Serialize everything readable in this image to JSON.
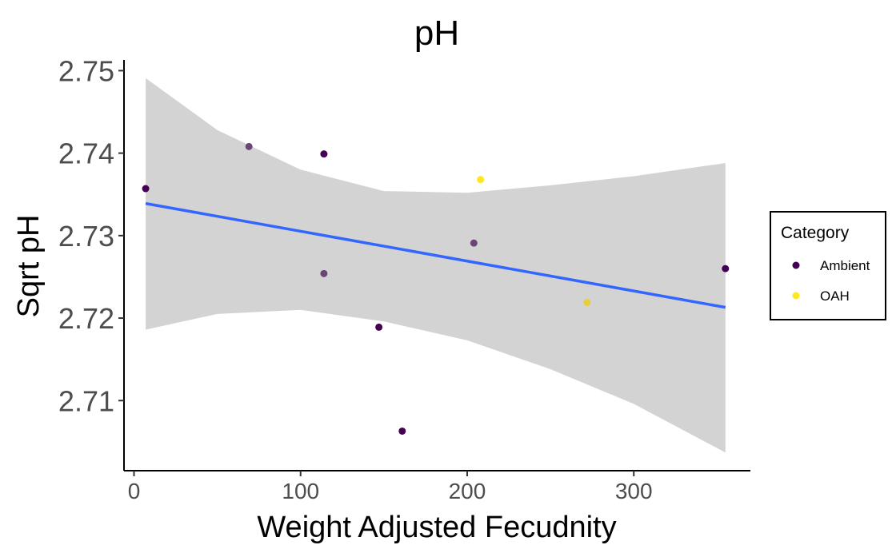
{
  "chart_data": {
    "type": "scatter",
    "title": "pH",
    "xlabel": "Weight Adjusted Fecudnity",
    "ylabel": "Sqrt pH",
    "xlim": [
      -6,
      370
    ],
    "ylim": [
      2.7015,
      2.7513
    ],
    "x_ticks": [
      0,
      100,
      200,
      300
    ],
    "y_ticks": [
      2.71,
      2.72,
      2.73,
      2.74,
      2.75
    ],
    "x_tick_labels": [
      "0",
      "100",
      "200",
      "300"
    ],
    "y_tick_labels": [
      "2.71",
      "2.72",
      "2.73",
      "2.74",
      "2.75"
    ],
    "grid": false,
    "legend": {
      "title": "Category",
      "position": "right",
      "entries": [
        {
          "label": "Ambient",
          "color": "#440154"
        },
        {
          "label": "OAH",
          "color": "#fde725"
        }
      ]
    },
    "points": [
      {
        "x": 7,
        "y": 2.7357,
        "color": "#440154"
      },
      {
        "x": 69,
        "y": 2.7408,
        "color": "#6b4573"
      },
      {
        "x": 114,
        "y": 2.7399,
        "color": "#440154"
      },
      {
        "x": 114,
        "y": 2.7254,
        "color": "#6b4573"
      },
      {
        "x": 147,
        "y": 2.7189,
        "color": "#440154"
      },
      {
        "x": 161,
        "y": 2.7063,
        "color": "#440154"
      },
      {
        "x": 204,
        "y": 2.7291,
        "color": "#6b4573"
      },
      {
        "x": 208,
        "y": 2.7368,
        "color": "#fde725"
      },
      {
        "x": 272,
        "y": 2.7219,
        "color": "#e8cf3a"
      },
      {
        "x": 355,
        "y": 2.726,
        "color": "#440154"
      }
    ],
    "trend_line": {
      "color": "#3366ff",
      "x": [
        7,
        355
      ],
      "y": [
        2.7339,
        2.7213
      ]
    },
    "confidence_band": {
      "color": "#d3d3d3",
      "x": [
        7,
        50,
        100,
        150,
        200,
        250,
        300,
        355
      ],
      "upper": [
        2.7491,
        2.7428,
        2.738,
        2.7354,
        2.7352,
        2.7361,
        2.7372,
        2.7388
      ],
      "lower": [
        2.7186,
        2.7205,
        2.721,
        2.7196,
        2.7173,
        2.7138,
        2.7096,
        2.7037
      ]
    }
  }
}
